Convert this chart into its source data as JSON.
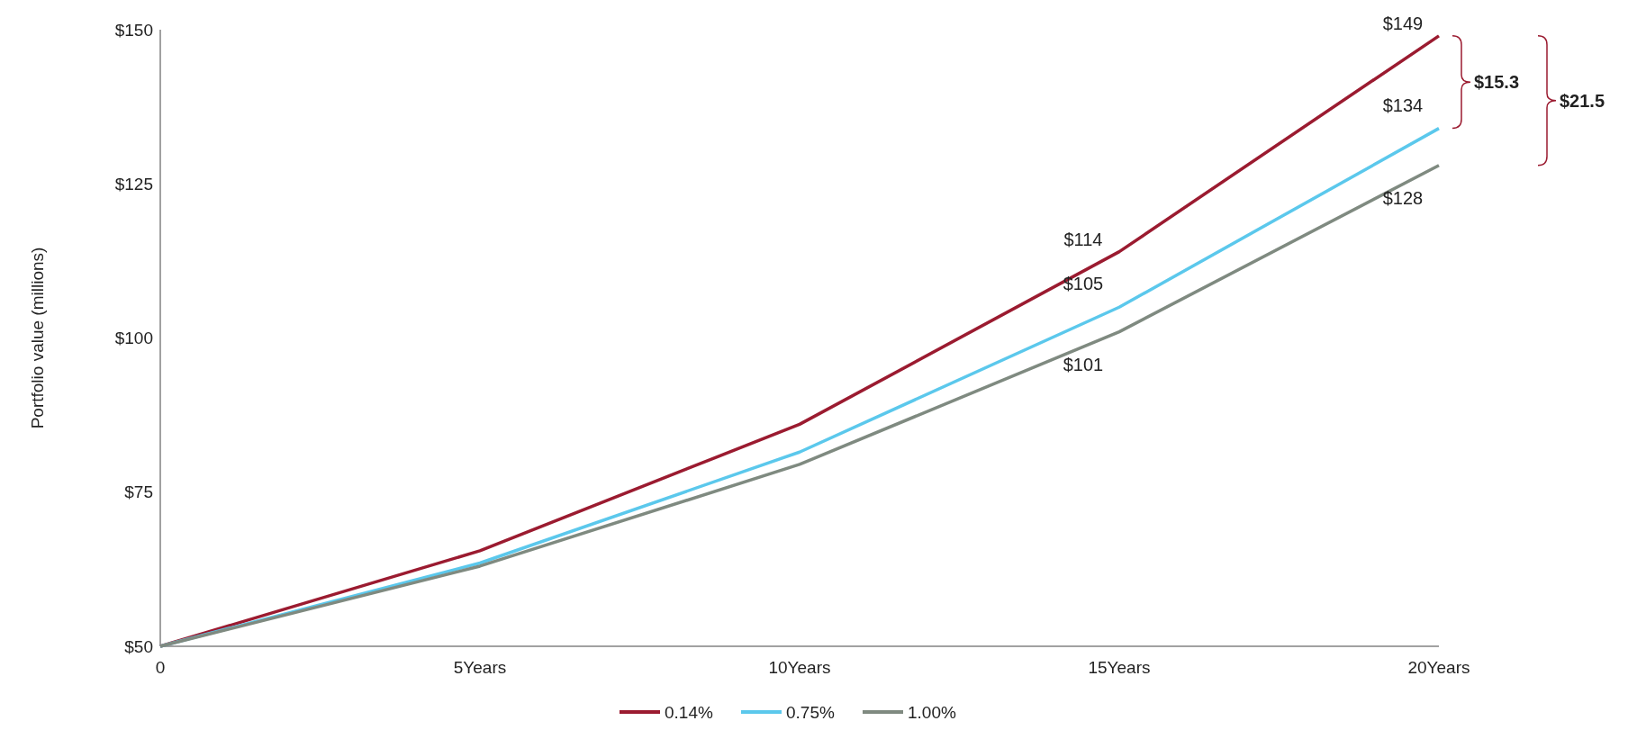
{
  "chart_data": {
    "type": "line",
    "ylabel": "Portfolio value (millions)",
    "categories": [
      "0",
      "5Years",
      "10Years",
      "15Years",
      "20Years"
    ],
    "ylim": [
      50,
      150
    ],
    "yticks": [
      {
        "value": 50,
        "label": "$50"
      },
      {
        "value": 75,
        "label": "$75"
      },
      {
        "value": 100,
        "label": "$100"
      },
      {
        "value": 125,
        "label": "$125"
      },
      {
        "value": 150,
        "label": "$150"
      }
    ],
    "series": [
      {
        "name": "0.14%",
        "color": "#9b1b30",
        "values": [
          50,
          65.5,
          86,
          114,
          149
        ],
        "value_labels": [
          null,
          null,
          null,
          "$114",
          "$149"
        ]
      },
      {
        "name": "0.75%",
        "color": "#5bc8ec",
        "values": [
          50,
          63.5,
          81.5,
          105,
          134
        ],
        "value_labels": [
          null,
          null,
          null,
          "$105",
          "$134"
        ]
      },
      {
        "name": "1.00%",
        "color": "#7f8a80",
        "values": [
          50,
          63,
          79.5,
          101,
          128
        ],
        "value_labels": [
          null,
          null,
          null,
          "$101",
          "$128"
        ]
      }
    ],
    "annotations": [
      "$15.3",
      "$21.5"
    ],
    "legend": "bottom",
    "grid": false,
    "marker": "none",
    "line_style": "solid"
  }
}
